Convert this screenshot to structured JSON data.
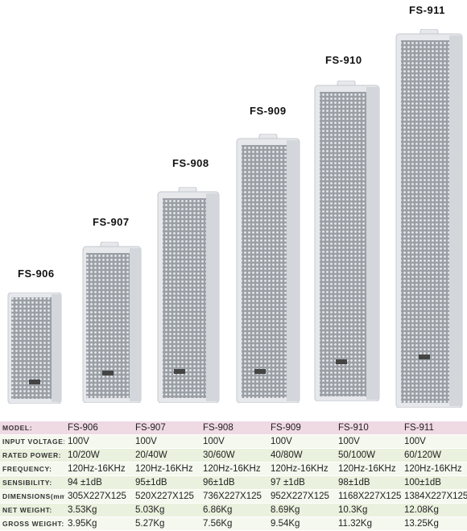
{
  "title_labels": [
    "FS-906",
    "FS-907",
    "FS-908",
    "FS-909",
    "FS-910",
    "FS-911"
  ],
  "specs": {
    "rows": [
      {
        "label": "MODEL:",
        "values": [
          "FS-906",
          "FS-907",
          "FS-908",
          "FS-909",
          "FS-910",
          "FS-911"
        ]
      },
      {
        "label": "INPUT VOLTAGE:",
        "values": [
          "100V",
          "100V",
          "100V",
          "100V",
          "100V",
          "100V"
        ]
      },
      {
        "label": "RATED POWER:",
        "values": [
          "10/20W",
          "20/40W",
          "30/60W",
          "40/80W",
          "50/100W",
          "60/120W"
        ]
      },
      {
        "label": "FREQUENCY:",
        "values": [
          "120Hz-16KHz",
          "120Hz-16KHz",
          "120Hz-16KHz",
          "120Hz-16KHz",
          "120Hz-16KHz",
          "120Hz-16KHz"
        ]
      },
      {
        "label": "SENSIBILITY:",
        "values": [
          "94 ±1dB",
          "95±1dB",
          "96±1dB",
          "97 ±1dB",
          "98±1dB",
          "100±1dB"
        ]
      },
      {
        "label": "DIMENSIONS(mm):",
        "values": [
          "305X227X125",
          "520X227X125",
          "736X227X125",
          "952X227X125",
          "1168X227X125",
          "1384X227X125"
        ]
      },
      {
        "label": "NET WEIGHT:",
        "values": [
          "3.53Kg",
          "5.03Kg",
          "6.86Kg",
          "8.69Kg",
          "10.3Kg",
          "12.08Kg"
        ]
      },
      {
        "label": "GROSS WEIGHT:",
        "values": [
          "3.95Kg",
          "5.27Kg",
          "7.56Kg",
          "9.54Kg",
          "11.32Kg",
          "13.25Kg"
        ]
      }
    ]
  },
  "colors": {
    "header_row": "#efd9e3",
    "row_a": "#eaf1de",
    "row_b": "#f4f8ee",
    "speaker_body": "#e6e8ec",
    "speaker_grille": "#8f949a"
  }
}
